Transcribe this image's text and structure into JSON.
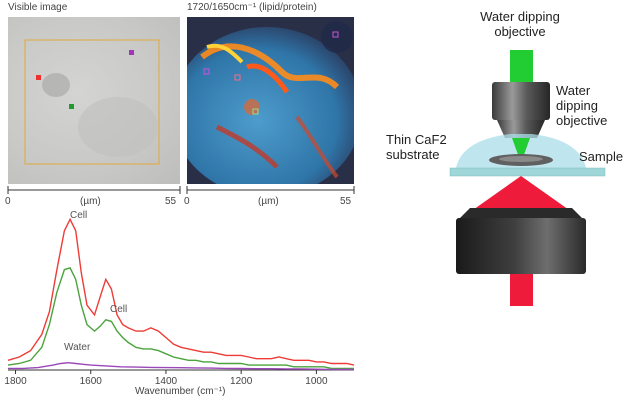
{
  "panels": {
    "visible_title": "Visible image",
    "ratio_title": "1720/1650cm⁻¹ (lipid/protein)",
    "scale_min": "0",
    "scale_max": "55",
    "scale_unit": "(µm)"
  },
  "chart_data": {
    "type": "line",
    "xlabel": "Wavenumber (cm⁻¹)",
    "x_ticks": [
      1800,
      1600,
      1400,
      1200,
      1000
    ],
    "xlim": [
      1820,
      900
    ],
    "x_reversed": true,
    "series": [
      {
        "name": "Cell",
        "color": "#ee3b35",
        "x": [
          1820,
          1790,
          1760,
          1730,
          1710,
          1690,
          1670,
          1655,
          1640,
          1625,
          1610,
          1590,
          1575,
          1560,
          1545,
          1530,
          1515,
          1500,
          1480,
          1460,
          1440,
          1420,
          1400,
          1380,
          1360,
          1340,
          1320,
          1300,
          1280,
          1260,
          1240,
          1220,
          1200,
          1180,
          1160,
          1140,
          1120,
          1100,
          1080,
          1060,
          1040,
          1020,
          1000,
          980,
          960,
          940,
          920,
          900
        ],
        "values": [
          0.06,
          0.08,
          0.12,
          0.22,
          0.36,
          0.62,
          0.86,
          0.93,
          0.86,
          0.6,
          0.4,
          0.34,
          0.45,
          0.56,
          0.5,
          0.34,
          0.28,
          0.26,
          0.24,
          0.24,
          0.26,
          0.24,
          0.2,
          0.16,
          0.14,
          0.13,
          0.12,
          0.11,
          0.11,
          0.1,
          0.09,
          0.09,
          0.09,
          0.08,
          0.07,
          0.07,
          0.07,
          0.08,
          0.07,
          0.06,
          0.06,
          0.06,
          0.05,
          0.05,
          0.04,
          0.04,
          0.04,
          0.03
        ]
      },
      {
        "name": "Cell",
        "color": "#4aa33c",
        "x": [
          1820,
          1790,
          1760,
          1730,
          1710,
          1690,
          1670,
          1655,
          1640,
          1625,
          1610,
          1590,
          1575,
          1560,
          1545,
          1530,
          1515,
          1500,
          1480,
          1460,
          1440,
          1420,
          1400,
          1380,
          1360,
          1340,
          1320,
          1300,
          1280,
          1260,
          1240,
          1220,
          1200,
          1180,
          1160,
          1140,
          1120,
          1100,
          1080,
          1060,
          1040,
          1020,
          1000,
          980,
          960,
          940,
          920,
          900
        ],
        "values": [
          0.03,
          0.04,
          0.06,
          0.14,
          0.28,
          0.48,
          0.62,
          0.63,
          0.56,
          0.4,
          0.28,
          0.24,
          0.27,
          0.31,
          0.3,
          0.24,
          0.2,
          0.17,
          0.14,
          0.13,
          0.13,
          0.12,
          0.1,
          0.08,
          0.07,
          0.06,
          0.06,
          0.05,
          0.05,
          0.04,
          0.04,
          0.04,
          0.04,
          0.03,
          0.03,
          0.03,
          0.03,
          0.03,
          0.03,
          0.02,
          0.02,
          0.02,
          0.02,
          0.02,
          0.01,
          0.01,
          0.01,
          0.01
        ]
      },
      {
        "name": "Water",
        "color": "#9b47b8",
        "x": [
          1820,
          1780,
          1740,
          1700,
          1680,
          1660,
          1640,
          1620,
          1600,
          1560,
          1520,
          1480,
          1440,
          1400,
          1360,
          1320,
          1280,
          1240,
          1200,
          1160,
          1120,
          1080,
          1040,
          1000,
          960,
          920,
          900
        ],
        "values": [
          0.01,
          0.01,
          0.015,
          0.03,
          0.04,
          0.045,
          0.04,
          0.035,
          0.03,
          0.025,
          0.02,
          0.018,
          0.016,
          0.015,
          0.014,
          0.013,
          0.012,
          0.01,
          0.009,
          0.008,
          0.008,
          0.007,
          0.006,
          0.005,
          0.004,
          0.003,
          0.003
        ]
      }
    ],
    "annotations": [
      {
        "text": "Cell",
        "series": 0
      },
      {
        "text": "Cell",
        "series": 1
      },
      {
        "text": "Water",
        "series": 2
      }
    ]
  },
  "diagram": {
    "top_label": "Water dipping objective",
    "objective_label": "Water dipping objective",
    "substrate_label": "Thin CaF2 substrate",
    "sample_label": "Sample",
    "colors": {
      "green_beam": "#22cc33",
      "red_beam": "#ee1c3a",
      "water": "#a9dde8",
      "substrate": "#9fd6d8"
    }
  }
}
